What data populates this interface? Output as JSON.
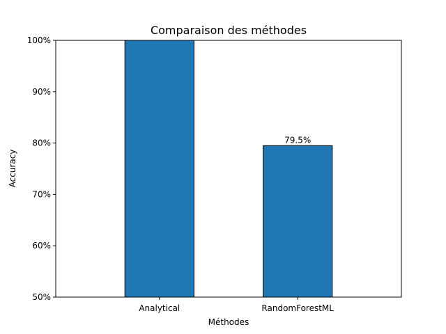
{
  "chart_data": {
    "type": "bar",
    "title": "Comparaison des méthodes",
    "xlabel": "Méthodes",
    "ylabel": "Accuracy",
    "categories": [
      "Analytical",
      "RandomForestML"
    ],
    "values": [
      100,
      79.5
    ],
    "value_unit": "%",
    "ylim": [
      50,
      100
    ],
    "yticks": [
      50,
      60,
      70,
      80,
      90,
      100
    ],
    "ytick_labels": [
      "50%",
      "60%",
      "70%",
      "80%",
      "90%",
      "100%"
    ],
    "data_labels": [
      "",
      "79.5%"
    ],
    "grid": false,
    "legend": "none",
    "bar_color": "#1f77b4",
    "bar_edge_color": "#000000"
  }
}
